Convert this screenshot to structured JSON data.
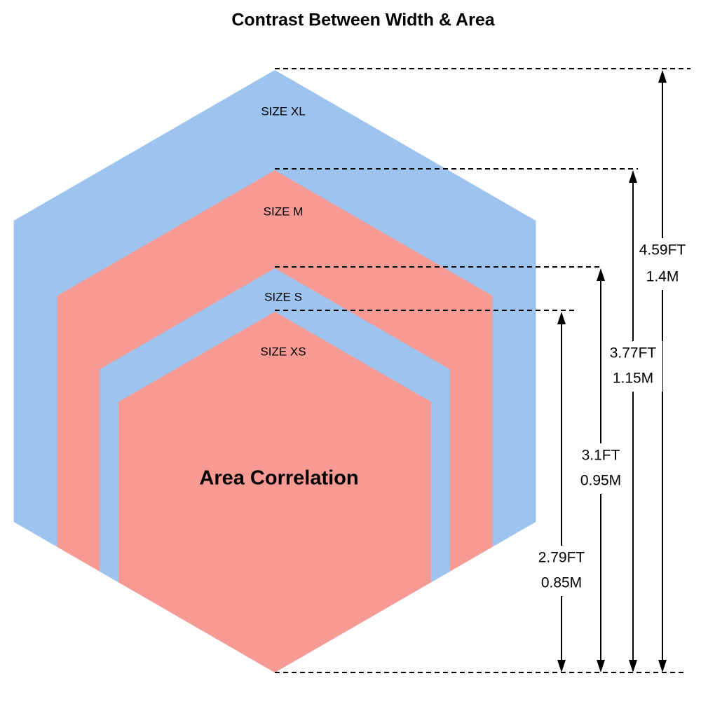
{
  "header": {
    "title": "Contrast Between Width & Area"
  },
  "sizes": [
    {
      "label": "SIZE XL",
      "feet": "4.59FT",
      "meters": "1.4M"
    },
    {
      "label": "SIZE M",
      "feet": "3.77FT",
      "meters": "1.15M"
    },
    {
      "label": "SIZE S",
      "feet": "3.1FT",
      "meters": "0.95M"
    },
    {
      "label": "SIZE XS",
      "feet": "2.79FT",
      "meters": "0.85M"
    }
  ],
  "center_label": "Area Correlation"
}
